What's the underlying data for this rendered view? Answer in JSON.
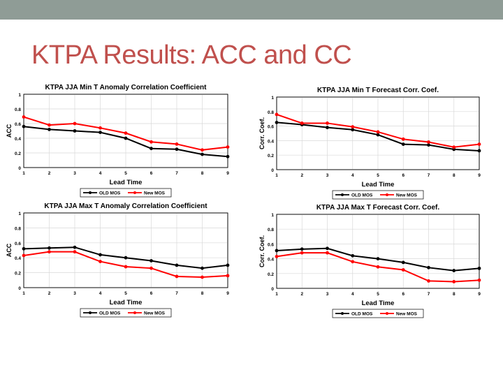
{
  "slide": {
    "title": "KTPA Results: ACC and CC"
  },
  "colors": {
    "old_mos": "#000000",
    "new_mos": "#ff0000",
    "title_accent": "#c0504d",
    "top_bar": "#8f9c96"
  },
  "chart_data": [
    {
      "type": "line",
      "title": "KTPA JJA Min T Anomaly Correlation Coefficient",
      "xlabel": "Lead Time",
      "ylabel": "ACC",
      "x": [
        1,
        2,
        3,
        4,
        5,
        6,
        7,
        8,
        9
      ],
      "ylim": [
        0,
        1
      ],
      "yticks": [
        "0",
        "0.2",
        "0.4",
        "0.6",
        "0.8",
        "1"
      ],
      "grid": true,
      "legend": "bottom",
      "series": [
        {
          "name": "OLD MOS",
          "values": [
            0.56,
            0.52,
            0.5,
            0.48,
            0.4,
            0.26,
            0.25,
            0.18,
            0.15
          ]
        },
        {
          "name": "New MOS",
          "values": [
            0.69,
            0.58,
            0.6,
            0.54,
            0.47,
            0.35,
            0.32,
            0.24,
            0.28
          ]
        }
      ]
    },
    {
      "type": "line",
      "title": "KTPA JJA Min T Forecast Corr. Coef.",
      "xlabel": "Lead Time",
      "ylabel": "Corr. Coef.",
      "x": [
        1,
        2,
        3,
        4,
        5,
        6,
        7,
        8,
        9
      ],
      "ylim": [
        0,
        1
      ],
      "yticks": [
        "0",
        "0.2",
        "0.4",
        "0.6",
        "0.8",
        "1"
      ],
      "grid": true,
      "legend": "bottom",
      "series": [
        {
          "name": "OLD MOS",
          "values": [
            0.65,
            0.62,
            0.58,
            0.55,
            0.48,
            0.35,
            0.34,
            0.28,
            0.26
          ]
        },
        {
          "name": "New MOS",
          "values": [
            0.76,
            0.64,
            0.64,
            0.59,
            0.52,
            0.42,
            0.38,
            0.31,
            0.35
          ]
        }
      ]
    },
    {
      "type": "line",
      "title": "KTPA JJA Max T Anomaly Correlation Coefficient",
      "xlabel": "Lead Time",
      "ylabel": "ACC",
      "x": [
        1,
        2,
        3,
        4,
        5,
        6,
        7,
        8,
        9
      ],
      "ylim": [
        0,
        1
      ],
      "yticks": [
        "0",
        "0.2",
        "0.4",
        "0.6",
        "0.8",
        "1"
      ],
      "grid": true,
      "legend": "bottom",
      "series": [
        {
          "name": "OLD MOS",
          "values": [
            0.52,
            0.53,
            0.54,
            0.44,
            0.4,
            0.36,
            0.3,
            0.26,
            0.3
          ]
        },
        {
          "name": "New MOS",
          "values": [
            0.43,
            0.48,
            0.48,
            0.35,
            0.28,
            0.26,
            0.15,
            0.14,
            0.16
          ]
        }
      ]
    },
    {
      "type": "line",
      "title": "KTPA JJA Max T Forecast Corr. Coef.",
      "xlabel": "Lead Time",
      "ylabel": "Corr. Coef.",
      "x": [
        1,
        2,
        3,
        4,
        5,
        6,
        7,
        8,
        9
      ],
      "ylim": [
        0,
        1
      ],
      "yticks": [
        "0",
        "0.2",
        "0.4",
        "0.6",
        "0.8",
        "1"
      ],
      "grid": true,
      "legend": "bottom",
      "series": [
        {
          "name": "OLD MOS",
          "values": [
            0.51,
            0.53,
            0.54,
            0.44,
            0.4,
            0.35,
            0.28,
            0.24,
            0.27
          ]
        },
        {
          "name": "New MOS",
          "values": [
            0.43,
            0.48,
            0.48,
            0.36,
            0.29,
            0.25,
            0.1,
            0.09,
            0.11
          ]
        }
      ]
    }
  ]
}
